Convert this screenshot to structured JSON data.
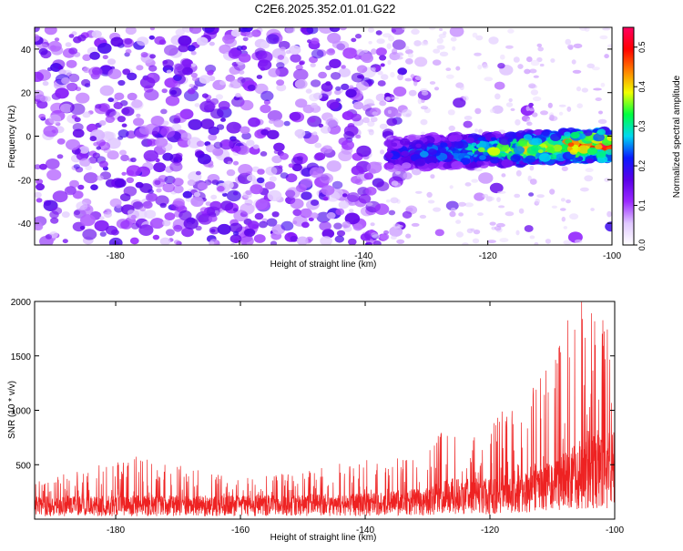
{
  "title": "C2E6.2025.352.01.01.G22",
  "chart_data": [
    {
      "type": "heatmap",
      "xlabel": "Height of straight line (km)",
      "ylabel": "Frequency (Hz)",
      "xlim": [
        -193,
        -100
      ],
      "ylim": [
        -50,
        50
      ],
      "xticks": [
        -180,
        -160,
        -140,
        -120,
        -100
      ],
      "yticks": [
        -40,
        -20,
        0,
        20,
        40
      ],
      "colorbar": {
        "label": "Normalized spectral amplitude",
        "range": [
          0.0,
          0.55
        ],
        "ticks": [
          0.0,
          0.1,
          0.2,
          0.3,
          0.4,
          0.5
        ],
        "colors": [
          "#ffffff",
          "#e0c8ff",
          "#9a2aff",
          "#5a00e8",
          "#0a1aff",
          "#00d8f0",
          "#00ff40",
          "#f0ff00",
          "#ff8000",
          "#ff0000",
          "#ff0060"
        ]
      },
      "features": [
        {
          "name": "broadband noise",
          "x_range": [
            -193,
            -140
          ],
          "y_range": [
            -50,
            50
          ],
          "amplitude": 0.12
        },
        {
          "name": "signal band",
          "x_range": [
            -136,
            -100
          ],
          "y_center_start": -8,
          "y_center_end": -4,
          "halfwidth": 7,
          "amplitude_start": 0.2,
          "amplitude_end": 0.5
        }
      ]
    },
    {
      "type": "line",
      "xlabel": "Height of straight line (km)",
      "ylabel": "SNR (10 * v/v)",
      "xlim": [
        -193,
        -100
      ],
      "ylim": [
        0,
        2000
      ],
      "xticks": [
        -180,
        -160,
        -140,
        -120,
        -100
      ],
      "yticks": [
        500,
        1000,
        1500,
        2000
      ],
      "color": "#ee2222",
      "envelope": [
        {
          "x": -193,
          "baseline": 170,
          "peak": 350
        },
        {
          "x": -178,
          "baseline": 175,
          "peak": 560
        },
        {
          "x": -160,
          "baseline": 175,
          "peak": 380
        },
        {
          "x": -140,
          "baseline": 190,
          "peak": 520
        },
        {
          "x": -130,
          "baseline": 230,
          "peak": 650
        },
        {
          "x": -127,
          "baseline": 300,
          "peak": 900
        },
        {
          "x": -120,
          "baseline": 300,
          "peak": 850
        },
        {
          "x": -115,
          "baseline": 380,
          "peak": 1100
        },
        {
          "x": -110,
          "baseline": 450,
          "peak": 1550
        },
        {
          "x": -105,
          "baseline": 600,
          "peak": 2000
        },
        {
          "x": -100,
          "baseline": 650,
          "peak": 1800
        }
      ]
    }
  ]
}
